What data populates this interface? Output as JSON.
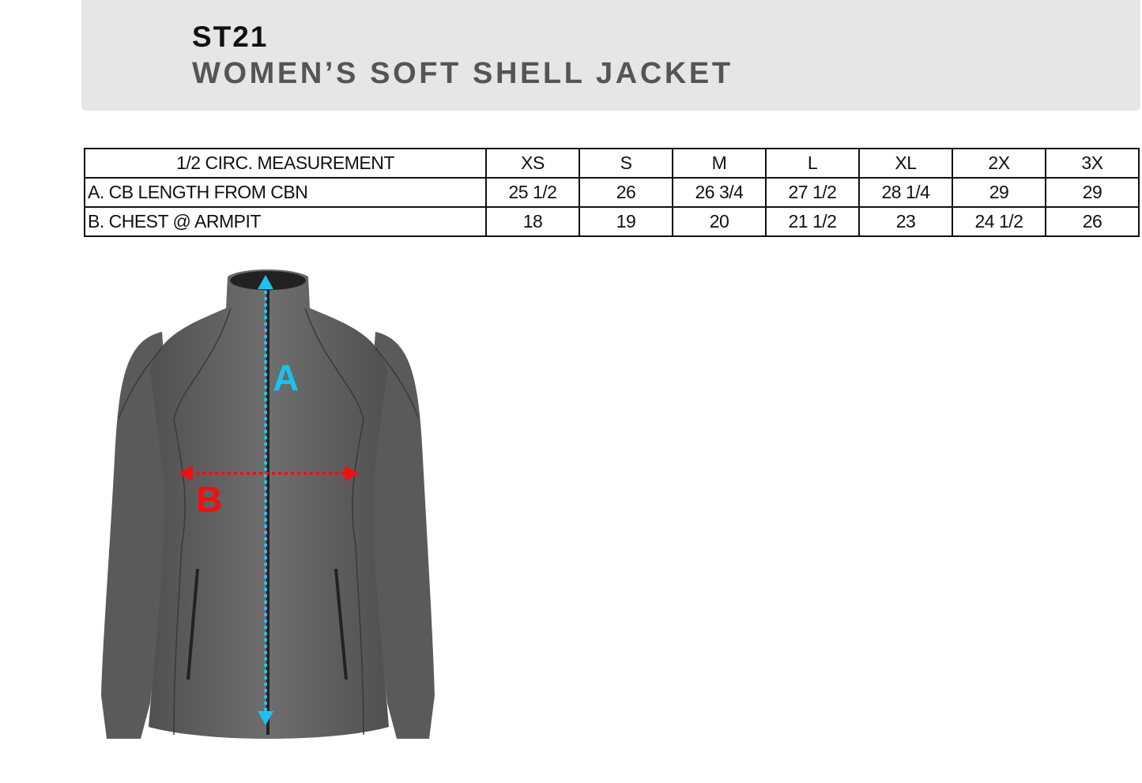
{
  "header": {
    "code": "ST21",
    "title": "WOMEN’S SOFT SHELL JACKET"
  },
  "table": {
    "columns": [
      "1/2 CIRC. MEASUREMENT",
      "XS",
      "S",
      "M",
      "L",
      "XL",
      "2X",
      "3X"
    ],
    "rows": [
      {
        "label": "A. CB LENGTH FROM CBN",
        "values": [
          "25 1/2",
          "26",
          "26 3/4",
          "27 1/2",
          "28 1/4",
          "29",
          "29"
        ]
      },
      {
        "label": "B. CHEST @ ARMPIT",
        "values": [
          "18",
          "19",
          "20",
          "21 1/2",
          "23",
          "24 1/2",
          "26"
        ]
      }
    ]
  },
  "diagram": {
    "label_a": "A",
    "label_b": "B",
    "color_a": "#1ec0f0",
    "color_b": "#ee1111",
    "jacket_color": "#666666"
  }
}
